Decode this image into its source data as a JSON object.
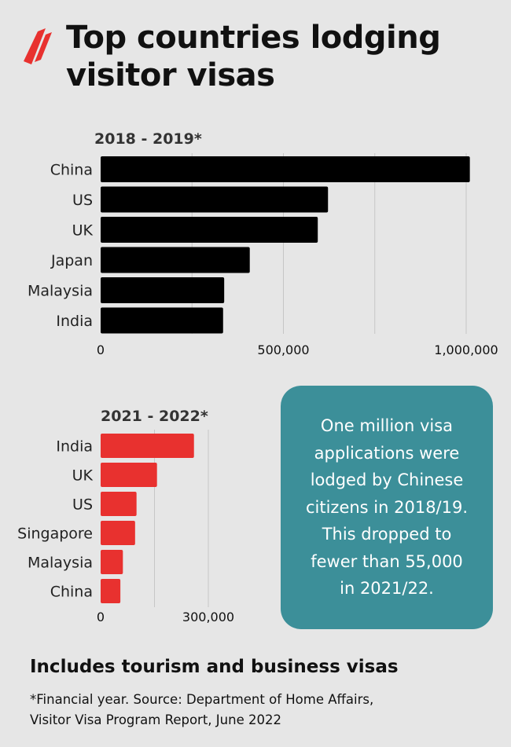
{
  "header": {
    "title_line1": "Top countries lodging",
    "title_line2": "visitor visas",
    "logo_icon": "sbs-logo-icon"
  },
  "colors": {
    "background": "#e6e6e6",
    "bar_2018": "#000000",
    "bar_2021": "#e8312f",
    "callout": "#3c8f99"
  },
  "chart_data": [
    {
      "type": "bar",
      "orientation": "horizontal",
      "title": "2018 - 2019*",
      "categories": [
        "China",
        "US",
        "UK",
        "Japan",
        "Malaysia",
        "India"
      ],
      "values": [
        1010000,
        622000,
        594000,
        408000,
        338000,
        335000
      ],
      "xlim": [
        0,
        1000000
      ],
      "ticks": [
        0,
        500000,
        1000000
      ],
      "tick_labels": [
        "0",
        "500,000",
        "1,000,000"
      ],
      "grid": true,
      "color": "#000000"
    },
    {
      "type": "bar",
      "orientation": "horizontal",
      "title": "2021 - 2022*",
      "categories": [
        "India",
        "UK",
        "US",
        "Singapore",
        "Malaysia",
        "China"
      ],
      "values": [
        260000,
        157000,
        100000,
        96000,
        62000,
        55000
      ],
      "xlim": [
        0,
        300000
      ],
      "ticks": [
        0,
        300000
      ],
      "tick_labels": [
        "0",
        "300,000"
      ],
      "grid": true,
      "color": "#e8312f"
    }
  ],
  "callout": {
    "lines": [
      "One million visa",
      "applications were",
      "lodged by Chinese",
      "citizens in 2018/19.",
      "This dropped to",
      "fewer than 55,000",
      "in 2021/22."
    ]
  },
  "footer": {
    "subhead": "Includes tourism and business visas",
    "footnote_line1": "*Financial year. Source: Department of Home Affairs,",
    "footnote_line2": "Visitor Visa Program Report, June 2022"
  }
}
